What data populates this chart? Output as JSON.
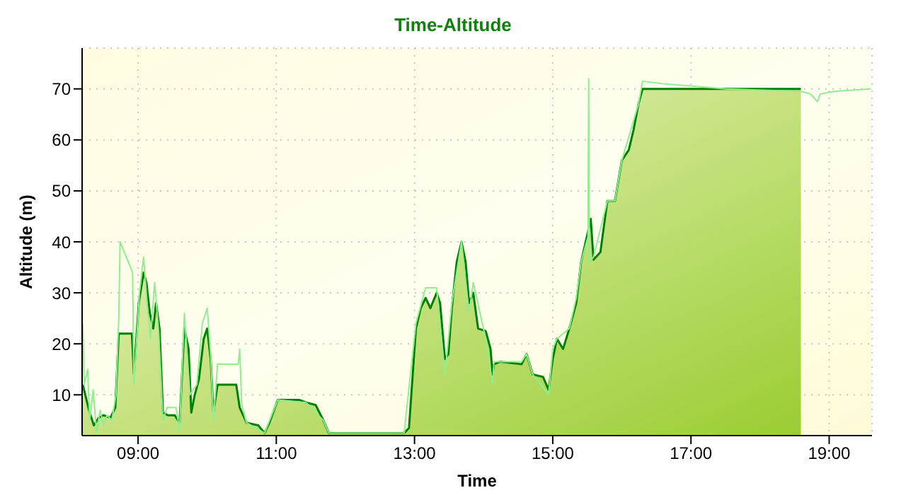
{
  "chart_data": {
    "type": "area",
    "title": "Time-Altitude",
    "xlabel": "Time",
    "ylabel": "Altitude (m)",
    "xlim": [
      8.19,
      19.62
    ],
    "xticks": [
      {
        "value": 9,
        "label": "09:00"
      },
      {
        "value": 11,
        "label": "11:00"
      },
      {
        "value": 13,
        "label": "13:00"
      },
      {
        "value": 15,
        "label": "15:00"
      },
      {
        "value": 17,
        "label": "17:00"
      },
      {
        "value": 19,
        "label": "19:00"
      }
    ],
    "ylim": [
      2,
      78
    ],
    "yticks": [
      10,
      20,
      30,
      40,
      50,
      60,
      70
    ],
    "grid": true,
    "line_style": "solid",
    "series": [
      {
        "color": "#008000",
        "x": [
          8.2,
          8.29,
          8.36,
          8.43,
          8.5,
          8.6,
          8.67,
          8.72,
          8.91,
          8.94,
          9.01,
          9.08,
          9.12,
          9.17,
          9.22,
          9.26,
          9.31,
          9.36,
          9.43,
          9.53,
          9.6,
          9.67,
          9.73,
          9.77,
          9.82,
          9.88,
          9.95,
          10.0,
          10.05,
          10.09,
          10.15,
          10.42,
          10.47,
          10.57,
          10.74,
          10.83,
          10.9,
          11.02,
          11.12,
          11.33,
          11.43,
          11.57,
          11.68,
          11.76,
          12.85,
          12.92,
          13.02,
          13.09,
          13.16,
          13.23,
          13.32,
          13.37,
          13.44,
          13.49,
          13.54,
          13.61,
          13.68,
          13.74,
          13.79,
          13.85,
          13.92,
          14.03,
          14.1,
          14.13,
          14.15,
          14.24,
          14.55,
          14.62,
          14.71,
          14.86,
          14.94,
          15.0,
          15.06,
          15.15,
          15.24,
          15.34,
          15.41,
          15.51,
          15.55,
          15.59,
          15.69,
          15.79,
          15.9,
          16.0,
          16.1,
          16.17,
          16.24,
          16.3,
          16.45,
          18.59
        ],
        "values": [
          12,
          7,
          4,
          5.5,
          6,
          5.5,
          7.5,
          22,
          22,
          14,
          28,
          34,
          32,
          26,
          23,
          28,
          23,
          6.5,
          6,
          6,
          4.5,
          23,
          19,
          6.5,
          10,
          13,
          21,
          23,
          17,
          6.5,
          12,
          12,
          7.5,
          4.5,
          4,
          2.5,
          4.5,
          9,
          9,
          9,
          8.5,
          8,
          5,
          2.5,
          2.5,
          3.5,
          23,
          27,
          29,
          27,
          30,
          28,
          17,
          18,
          27,
          36,
          40,
          36,
          28,
          30,
          23,
          22.5,
          19,
          14,
          16,
          16.5,
          16,
          18,
          14,
          13.5,
          11,
          17,
          21,
          19,
          23,
          28,
          36,
          42,
          44.5,
          36.5,
          38,
          48,
          48,
          56,
          58,
          62,
          67,
          70,
          70,
          70
        ]
      },
      {
        "type": "line",
        "color": "#90ee90",
        "x": [
          8.2,
          8.22,
          8.27,
          8.3,
          8.35,
          8.4,
          8.45,
          8.5,
          8.55,
          8.62,
          8.68,
          8.72,
          8.74,
          8.92,
          8.94,
          9.02,
          9.08,
          9.13,
          9.18,
          9.24,
          9.3,
          9.36,
          9.42,
          9.55,
          9.6,
          9.67,
          9.75,
          9.85,
          9.93,
          10.0,
          10.05,
          10.09,
          10.15,
          10.45,
          10.47,
          10.5,
          10.57,
          10.83,
          11.02,
          11.43,
          11.68,
          11.76,
          12.85,
          13.02,
          13.16,
          13.32,
          13.44,
          13.54,
          13.68,
          13.79,
          13.85,
          14.03,
          14.13,
          14.15,
          14.55,
          14.62,
          14.71,
          14.94,
          15.0,
          15.06,
          15.24,
          15.34,
          15.41,
          15.51,
          15.52,
          15.53,
          15.59,
          15.79,
          15.9,
          16.0,
          16.24,
          16.3,
          16.6,
          17.5,
          18.59,
          18.73,
          18.83,
          18.87,
          19.07,
          19.6
        ],
        "values": [
          24,
          12,
          15,
          5,
          11,
          2.5,
          7,
          4,
          6,
          5,
          10,
          25,
          40,
          34,
          12,
          30,
          37,
          28,
          21,
          32,
          22,
          5,
          7.5,
          7.5,
          3,
          26,
          10,
          12,
          24,
          27,
          18,
          5,
          16,
          16,
          19,
          8,
          4.5,
          2.5,
          9,
          8.5,
          5,
          2.5,
          2.5,
          24,
          31,
          31,
          14,
          28,
          40,
          26,
          32,
          21,
          12,
          16.5,
          16.5,
          18,
          14,
          10,
          19,
          21,
          23,
          29,
          36,
          41,
          72,
          36,
          37,
          48,
          48,
          56,
          67,
          71.5,
          71,
          70,
          69.5,
          69,
          67.5,
          69,
          69.5,
          70
        ]
      }
    ]
  }
}
